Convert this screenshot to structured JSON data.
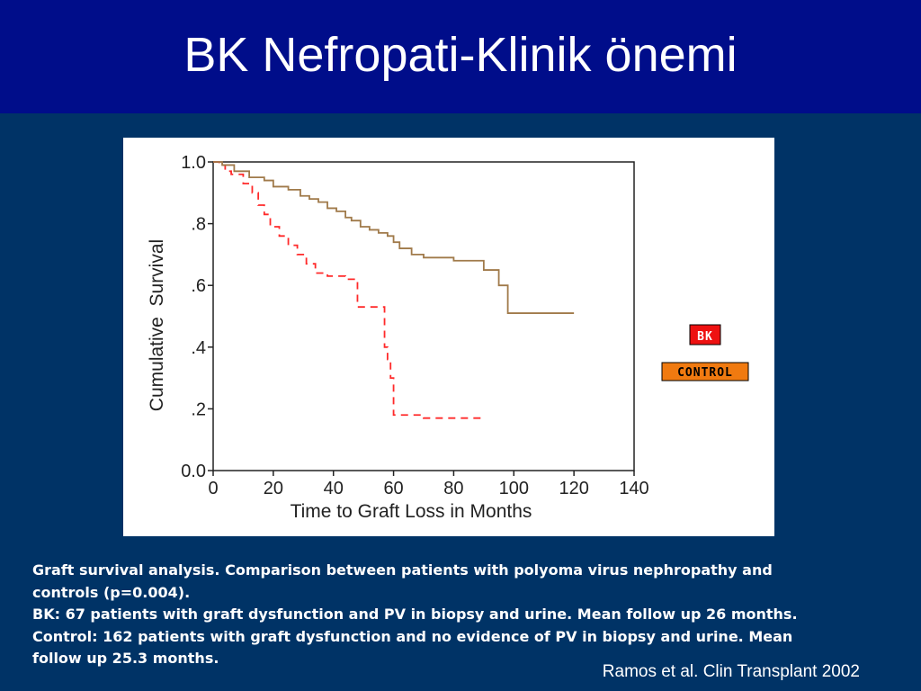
{
  "slide": {
    "title": "BK Nefropati-Klinik önemi",
    "citation": "Ramos et al. Clin Transplant 2002"
  },
  "caption": {
    "lines": [
      "Graft survival analysis. Comparison between patients with polyoma virus nephropathy and",
      "controls (p=0.004).",
      "BK: 67 patients with graft dysfunction and PV in biopsy and urine. Mean follow up 26 months.",
      "Control: 162 patients with graft dysfunction and no evidence of PV in biopsy and urine.  Mean",
      "follow up 25.3 months."
    ]
  },
  "chart_data": {
    "type": "line",
    "step": true,
    "xlabel": "Time to Graft Loss in Months",
    "ylabel": "Cumulative  Survival",
    "xlim": [
      0,
      140
    ],
    "ylim": [
      0,
      1
    ],
    "x_ticks": [
      0,
      20,
      40,
      60,
      80,
      100,
      120,
      140
    ],
    "x_tick_labels": [
      "0",
      "20",
      "40",
      "60",
      "80",
      "100",
      "120",
      "140"
    ],
    "y_ticks": [
      0,
      0.2,
      0.4,
      0.6,
      0.8,
      1.0
    ],
    "y_tick_labels": [
      "0.0",
      ".2",
      ".4",
      ".6",
      ".8",
      "1.0"
    ],
    "grid": false,
    "legend_position": "right",
    "series": [
      {
        "name": "BK",
        "color": "#ff2a2a",
        "dash": true,
        "legend_bg": "#ee1111",
        "legend_fg": "#ffffff",
        "x": [
          0,
          2,
          4,
          6,
          10,
          13,
          15,
          17,
          19,
          22,
          25,
          28,
          31,
          34,
          35,
          38,
          40,
          44,
          48,
          52,
          56,
          57,
          58,
          59,
          60,
          65,
          70,
          75,
          80,
          85,
          90
        ],
        "y": [
          1.0,
          0.99,
          0.97,
          0.96,
          0.93,
          0.9,
          0.86,
          0.83,
          0.79,
          0.76,
          0.73,
          0.7,
          0.67,
          0.64,
          0.64,
          0.63,
          0.63,
          0.62,
          0.53,
          0.53,
          0.53,
          0.4,
          0.36,
          0.3,
          0.18,
          0.18,
          0.17,
          0.17,
          0.17,
          0.17,
          0.17
        ]
      },
      {
        "name": "CONTROL",
        "color": "#a07a4a",
        "dash": false,
        "legend_bg": "#f07a10",
        "legend_fg": "#000000",
        "x": [
          0,
          3,
          7,
          12,
          17,
          20,
          25,
          29,
          32,
          35,
          38,
          41,
          44,
          46,
          49,
          52,
          55,
          58,
          60,
          62,
          66,
          70,
          75,
          80,
          85,
          90,
          95,
          98,
          102,
          106,
          110,
          115,
          120
        ],
        "y": [
          1.0,
          0.99,
          0.97,
          0.95,
          0.94,
          0.92,
          0.91,
          0.89,
          0.88,
          0.87,
          0.85,
          0.84,
          0.82,
          0.81,
          0.79,
          0.78,
          0.77,
          0.76,
          0.74,
          0.72,
          0.7,
          0.69,
          0.69,
          0.68,
          0.68,
          0.65,
          0.6,
          0.51,
          0.51,
          0.51,
          0.51,
          0.51,
          0.51
        ]
      }
    ]
  }
}
